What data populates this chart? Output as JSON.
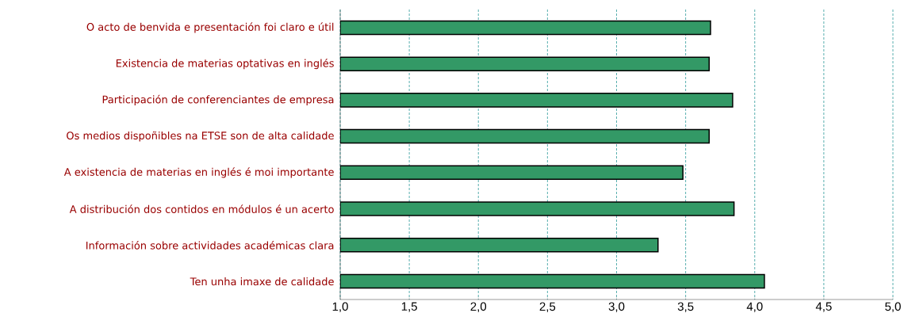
{
  "chart_data": {
    "type": "bar",
    "orientation": "horizontal",
    "categories": [
      "O acto de benvida e presentación foi claro e útil",
      "Existencia de materias optativas en inglés",
      "Participación de conferenciantes de empresa",
      "Os medios dispoñibles na ETSE son de alta calidade",
      "A existencia de materias en inglés é moi importante",
      "A distribución dos contidos en módulos é un acerto",
      "Información sobre actividades académicas clara",
      "Ten unha imaxe de calidade"
    ],
    "values": [
      3.68,
      3.67,
      3.84,
      3.67,
      3.48,
      3.85,
      3.3,
      4.07
    ],
    "color": "#339966",
    "xlim": [
      1,
      5
    ],
    "xticks": [
      {
        "value": 1,
        "label": "1,0"
      },
      {
        "value": 1.5,
        "label": "1,5"
      },
      {
        "value": 2,
        "label": "2,0"
      },
      {
        "value": 2.5,
        "label": "2,5"
      },
      {
        "value": 3,
        "label": "3,0"
      },
      {
        "value": 3.5,
        "label": "3,5"
      },
      {
        "value": 4,
        "label": "4,0"
      },
      {
        "value": 4.5,
        "label": "4,5"
      },
      {
        "value": 5,
        "label": "5,0"
      }
    ],
    "grid": "x"
  }
}
